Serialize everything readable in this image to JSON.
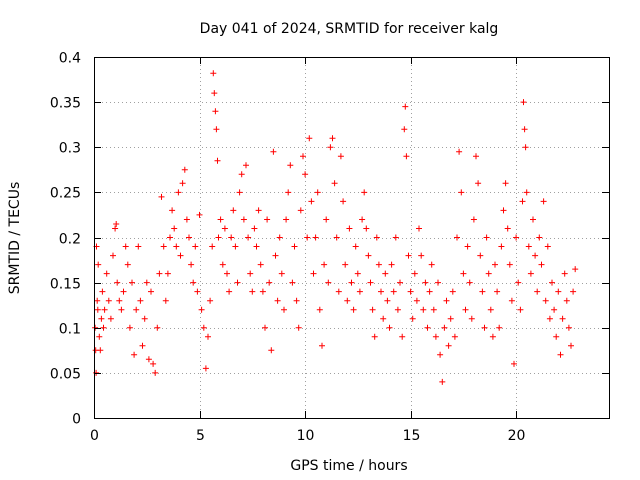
{
  "chart_data": {
    "type": "scatter",
    "title": "Day 041 of 2024, SRMTID for receiver kalg",
    "xlabel": "GPS time / hours",
    "ylabel": "SRMTID / TECUs",
    "xlim": [
      0,
      24.4
    ],
    "ylim": [
      0,
      0.4
    ],
    "x_ticks": [
      0,
      5,
      10,
      15,
      20
    ],
    "x_tick_labels": [
      "0",
      "5",
      "10",
      "15",
      "20"
    ],
    "y_ticks": [
      0,
      0.05,
      0.1,
      0.15,
      0.2,
      0.25,
      0.3,
      0.35,
      0.4
    ],
    "y_tick_labels": [
      "0",
      "0.05",
      "0.1",
      "0.15",
      "0.2",
      "0.25",
      "0.3",
      "0.35",
      "0.4"
    ],
    "grid": true,
    "marker": "plus",
    "color": "#ff0000",
    "series": [
      {
        "name": "SRMTID",
        "points": [
          [
            0.05,
            0.1
          ],
          [
            0.08,
            0.075
          ],
          [
            0.1,
            0.05
          ],
          [
            0.12,
            0.19
          ],
          [
            0.15,
            0.13
          ],
          [
            0.18,
            0.12
          ],
          [
            0.2,
            0.17
          ],
          [
            0.25,
            0.09
          ],
          [
            0.3,
            0.075
          ],
          [
            0.35,
            0.11
          ],
          [
            0.4,
            0.14
          ],
          [
            0.45,
            0.1
          ],
          [
            0.5,
            0.12
          ],
          [
            0.6,
            0.16
          ],
          [
            0.7,
            0.13
          ],
          [
            0.8,
            0.11
          ],
          [
            0.9,
            0.18
          ],
          [
            1.0,
            0.21
          ],
          [
            1.05,
            0.215
          ],
          [
            1.1,
            0.15
          ],
          [
            1.2,
            0.13
          ],
          [
            1.3,
            0.12
          ],
          [
            1.4,
            0.14
          ],
          [
            1.5,
            0.19
          ],
          [
            1.6,
            0.17
          ],
          [
            1.7,
            0.1
          ],
          [
            1.8,
            0.15
          ],
          [
            1.9,
            0.07
          ],
          [
            2.0,
            0.12
          ],
          [
            2.1,
            0.19
          ],
          [
            2.2,
            0.13
          ],
          [
            2.3,
            0.08
          ],
          [
            2.4,
            0.11
          ],
          [
            2.5,
            0.15
          ],
          [
            2.6,
            0.065
          ],
          [
            2.7,
            0.14
          ],
          [
            2.8,
            0.06
          ],
          [
            2.9,
            0.05
          ],
          [
            3.0,
            0.1
          ],
          [
            3.1,
            0.16
          ],
          [
            3.2,
            0.245
          ],
          [
            3.3,
            0.19
          ],
          [
            3.4,
            0.13
          ],
          [
            3.5,
            0.16
          ],
          [
            3.6,
            0.2
          ],
          [
            3.7,
            0.23
          ],
          [
            3.8,
            0.21
          ],
          [
            3.9,
            0.19
          ],
          [
            4.0,
            0.25
          ],
          [
            4.1,
            0.18
          ],
          [
            4.2,
            0.26
          ],
          [
            4.3,
            0.275
          ],
          [
            4.4,
            0.22
          ],
          [
            4.5,
            0.2
          ],
          [
            4.6,
            0.17
          ],
          [
            4.7,
            0.15
          ],
          [
            4.8,
            0.19
          ],
          [
            4.9,
            0.14
          ],
          [
            5.0,
            0.225
          ],
          [
            5.1,
            0.12
          ],
          [
            5.2,
            0.1
          ],
          [
            5.3,
            0.055
          ],
          [
            5.4,
            0.09
          ],
          [
            5.5,
            0.13
          ],
          [
            5.6,
            0.19
          ],
          [
            5.65,
            0.382
          ],
          [
            5.7,
            0.36
          ],
          [
            5.75,
            0.34
          ],
          [
            5.8,
            0.32
          ],
          [
            5.85,
            0.285
          ],
          [
            5.9,
            0.2
          ],
          [
            6.0,
            0.22
          ],
          [
            6.1,
            0.17
          ],
          [
            6.2,
            0.21
          ],
          [
            6.3,
            0.16
          ],
          [
            6.4,
            0.14
          ],
          [
            6.5,
            0.2
          ],
          [
            6.6,
            0.23
          ],
          [
            6.7,
            0.19
          ],
          [
            6.8,
            0.15
          ],
          [
            6.9,
            0.25
          ],
          [
            7.0,
            0.27
          ],
          [
            7.1,
            0.22
          ],
          [
            7.2,
            0.28
          ],
          [
            7.3,
            0.2
          ],
          [
            7.4,
            0.16
          ],
          [
            7.5,
            0.14
          ],
          [
            7.6,
            0.21
          ],
          [
            7.7,
            0.19
          ],
          [
            7.8,
            0.23
          ],
          [
            7.9,
            0.17
          ],
          [
            8.0,
            0.14
          ],
          [
            8.1,
            0.1
          ],
          [
            8.2,
            0.22
          ],
          [
            8.3,
            0.15
          ],
          [
            8.4,
            0.075
          ],
          [
            8.5,
            0.295
          ],
          [
            8.6,
            0.18
          ],
          [
            8.7,
            0.13
          ],
          [
            8.8,
            0.2
          ],
          [
            8.9,
            0.16
          ],
          [
            9.0,
            0.12
          ],
          [
            9.1,
            0.22
          ],
          [
            9.2,
            0.25
          ],
          [
            9.3,
            0.28
          ],
          [
            9.4,
            0.15
          ],
          [
            9.5,
            0.19
          ],
          [
            9.6,
            0.13
          ],
          [
            9.7,
            0.1
          ],
          [
            9.8,
            0.23
          ],
          [
            9.9,
            0.29
          ],
          [
            10.0,
            0.27
          ],
          [
            10.1,
            0.2
          ],
          [
            10.2,
            0.31
          ],
          [
            10.3,
            0.24
          ],
          [
            10.4,
            0.16
          ],
          [
            10.5,
            0.2
          ],
          [
            10.6,
            0.25
          ],
          [
            10.7,
            0.12
          ],
          [
            10.8,
            0.08
          ],
          [
            10.9,
            0.17
          ],
          [
            11.0,
            0.22
          ],
          [
            11.1,
            0.15
          ],
          [
            11.2,
            0.3
          ],
          [
            11.3,
            0.31
          ],
          [
            11.4,
            0.26
          ],
          [
            11.5,
            0.2
          ],
          [
            11.6,
            0.14
          ],
          [
            11.7,
            0.29
          ],
          [
            11.8,
            0.24
          ],
          [
            11.9,
            0.17
          ],
          [
            12.0,
            0.13
          ],
          [
            12.1,
            0.21
          ],
          [
            12.2,
            0.15
          ],
          [
            12.3,
            0.12
          ],
          [
            12.4,
            0.19
          ],
          [
            12.5,
            0.16
          ],
          [
            12.6,
            0.14
          ],
          [
            12.7,
            0.22
          ],
          [
            12.8,
            0.25
          ],
          [
            12.9,
            0.21
          ],
          [
            13.0,
            0.18
          ],
          [
            13.1,
            0.15
          ],
          [
            13.2,
            0.12
          ],
          [
            13.3,
            0.09
          ],
          [
            13.4,
            0.2
          ],
          [
            13.5,
            0.17
          ],
          [
            13.6,
            0.14
          ],
          [
            13.7,
            0.11
          ],
          [
            13.8,
            0.16
          ],
          [
            13.9,
            0.13
          ],
          [
            14.0,
            0.1
          ],
          [
            14.1,
            0.17
          ],
          [
            14.2,
            0.14
          ],
          [
            14.3,
            0.2
          ],
          [
            14.4,
            0.12
          ],
          [
            14.5,
            0.15
          ],
          [
            14.6,
            0.09
          ],
          [
            14.7,
            0.32
          ],
          [
            14.75,
            0.345
          ],
          [
            14.8,
            0.29
          ],
          [
            14.9,
            0.18
          ],
          [
            15.0,
            0.14
          ],
          [
            15.1,
            0.11
          ],
          [
            15.2,
            0.16
          ],
          [
            15.3,
            0.13
          ],
          [
            15.4,
            0.21
          ],
          [
            15.5,
            0.18
          ],
          [
            15.6,
            0.12
          ],
          [
            15.7,
            0.15
          ],
          [
            15.8,
            0.1
          ],
          [
            15.9,
            0.14
          ],
          [
            16.0,
            0.17
          ],
          [
            16.1,
            0.12
          ],
          [
            16.2,
            0.09
          ],
          [
            16.3,
            0.15
          ],
          [
            16.4,
            0.07
          ],
          [
            16.5,
            0.04
          ],
          [
            16.6,
            0.1
          ],
          [
            16.7,
            0.13
          ],
          [
            16.8,
            0.08
          ],
          [
            16.9,
            0.11
          ],
          [
            17.0,
            0.14
          ],
          [
            17.1,
            0.09
          ],
          [
            17.2,
            0.2
          ],
          [
            17.3,
            0.295
          ],
          [
            17.4,
            0.25
          ],
          [
            17.5,
            0.16
          ],
          [
            17.6,
            0.12
          ],
          [
            17.7,
            0.19
          ],
          [
            17.8,
            0.15
          ],
          [
            17.9,
            0.11
          ],
          [
            18.0,
            0.22
          ],
          [
            18.1,
            0.29
          ],
          [
            18.2,
            0.26
          ],
          [
            18.3,
            0.18
          ],
          [
            18.4,
            0.14
          ],
          [
            18.5,
            0.1
          ],
          [
            18.6,
            0.2
          ],
          [
            18.7,
            0.16
          ],
          [
            18.8,
            0.12
          ],
          [
            18.9,
            0.09
          ],
          [
            19.0,
            0.17
          ],
          [
            19.1,
            0.14
          ],
          [
            19.2,
            0.1
          ],
          [
            19.3,
            0.19
          ],
          [
            19.4,
            0.23
          ],
          [
            19.5,
            0.26
          ],
          [
            19.6,
            0.21
          ],
          [
            19.7,
            0.17
          ],
          [
            19.8,
            0.13
          ],
          [
            19.9,
            0.06
          ],
          [
            20.0,
            0.2
          ],
          [
            20.1,
            0.15
          ],
          [
            20.2,
            0.12
          ],
          [
            20.3,
            0.24
          ],
          [
            20.35,
            0.35
          ],
          [
            20.4,
            0.32
          ],
          [
            20.45,
            0.3
          ],
          [
            20.5,
            0.25
          ],
          [
            20.6,
            0.19
          ],
          [
            20.7,
            0.16
          ],
          [
            20.8,
            0.22
          ],
          [
            20.9,
            0.18
          ],
          [
            21.0,
            0.14
          ],
          [
            21.1,
            0.2
          ],
          [
            21.2,
            0.17
          ],
          [
            21.3,
            0.24
          ],
          [
            21.4,
            0.13
          ],
          [
            21.5,
            0.19
          ],
          [
            21.6,
            0.11
          ],
          [
            21.7,
            0.15
          ],
          [
            21.8,
            0.12
          ],
          [
            21.9,
            0.09
          ],
          [
            22.0,
            0.14
          ],
          [
            22.1,
            0.07
          ],
          [
            22.2,
            0.11
          ],
          [
            22.3,
            0.16
          ],
          [
            22.4,
            0.13
          ],
          [
            22.5,
            0.1
          ],
          [
            22.6,
            0.08
          ],
          [
            22.7,
            0.14
          ],
          [
            22.8,
            0.165
          ]
        ]
      }
    ]
  }
}
